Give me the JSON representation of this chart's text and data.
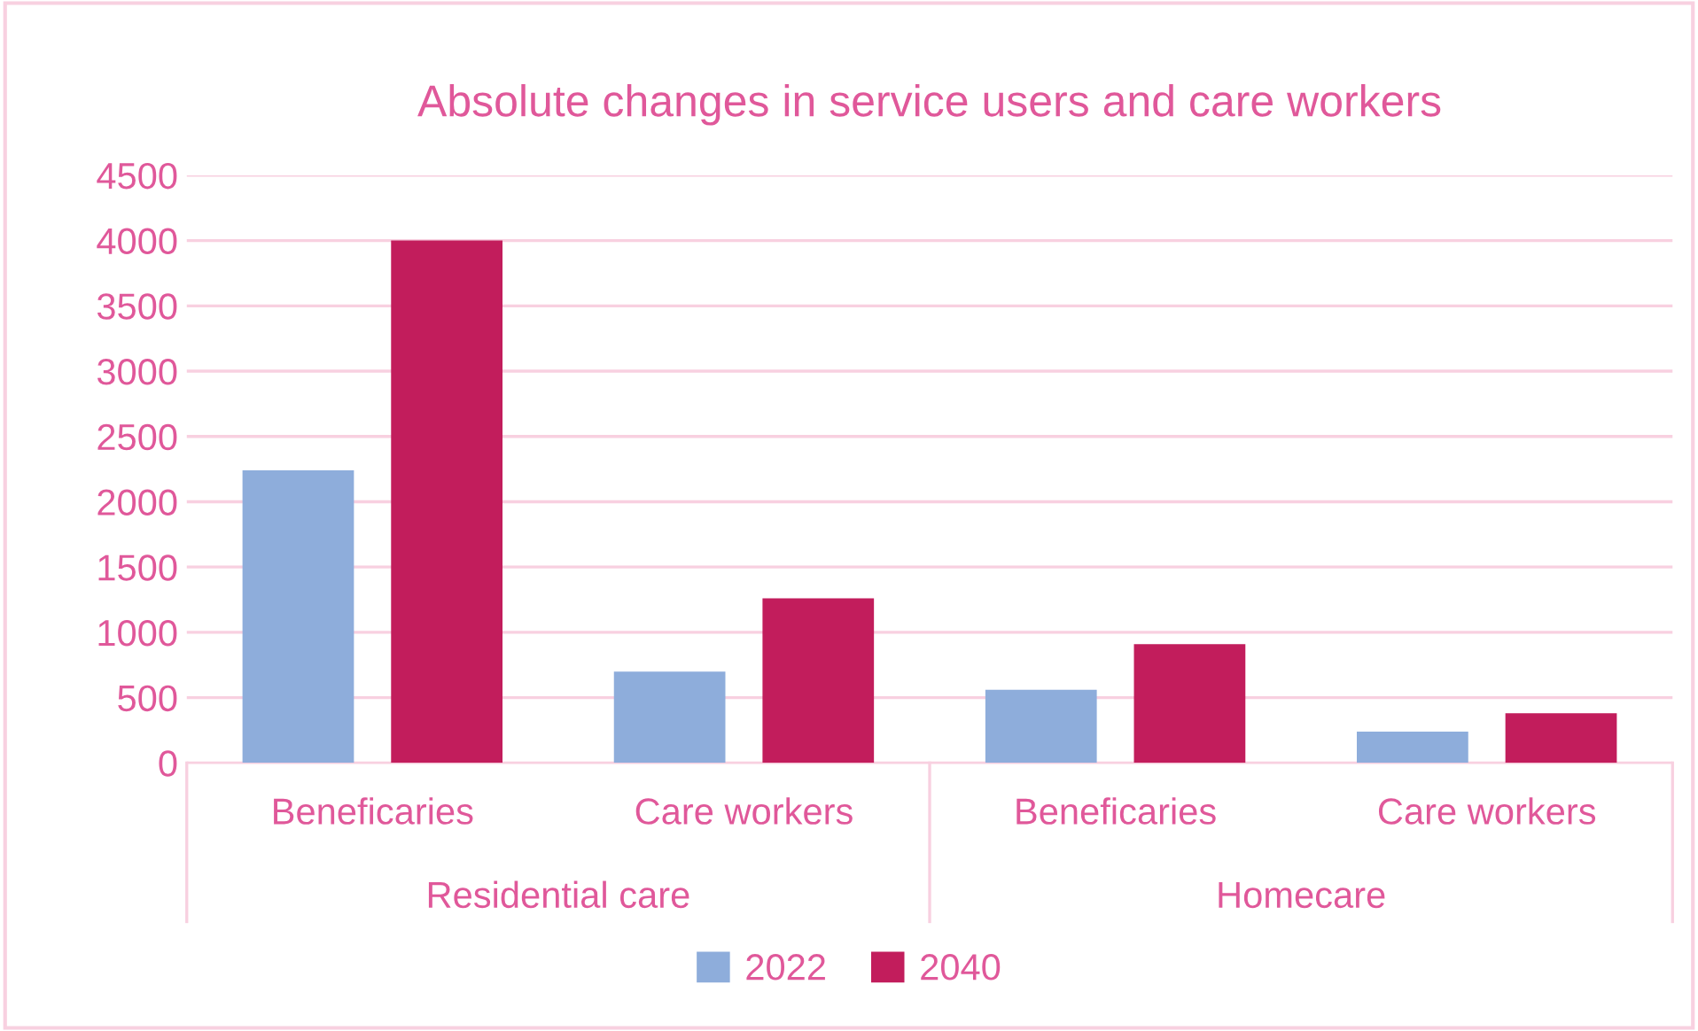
{
  "chart_data": {
    "type": "bar",
    "title": "Absolute changes in service users and care workers",
    "categories": [
      "Beneficaries",
      "Care workers",
      "Beneficaries",
      "Care workers"
    ],
    "annotations": [
      "Residential care",
      "Homecare"
    ],
    "series": [
      {
        "name": "2022",
        "color": "#8eaddb",
        "values": [
          2240,
          700,
          560,
          240
        ]
      },
      {
        "name": "2040",
        "color": "#c21d5c",
        "values": [
          4000,
          1260,
          910,
          380
        ]
      }
    ],
    "ylim": [
      0,
      4500
    ],
    "yticks": [
      0,
      500,
      1000,
      1500,
      2000,
      2500,
      3000,
      3500,
      4000,
      4500
    ],
    "grid": "y",
    "legend": "bottom"
  }
}
